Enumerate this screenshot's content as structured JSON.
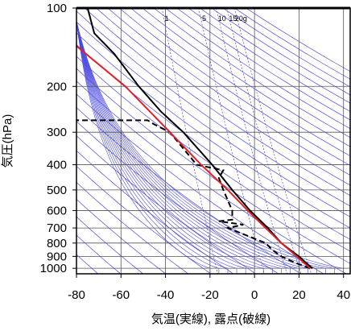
{
  "chart_data": {
    "type": "line",
    "x_label": "気温(実線), 露点(破線)",
    "y_label": "気圧(hPa)",
    "xlim": [
      -80,
      43
    ],
    "xticks": [
      -80,
      -60,
      -40,
      -20,
      0,
      20,
      40
    ],
    "ylim": [
      1050,
      100
    ],
    "yticks": [
      100,
      200,
      300,
      400,
      500,
      600,
      700,
      800,
      900,
      1000
    ],
    "y_scale": "log",
    "grid": true,
    "mixing_ratio": [
      1,
      5,
      10,
      15,
      {
        "value": 20,
        "label": "20g"
      }
    ],
    "series": [
      {
        "color": "#000000",
        "style": "solid",
        "y": [
          1000,
          950,
          900,
          850,
          800,
          700,
          600,
          500,
          400,
          300,
          250,
          200,
          150,
          125,
          100
        ],
        "x": [
          26,
          23,
          20,
          16,
          12,
          6,
          -2,
          -10,
          -19,
          -32,
          -42,
          -52,
          -63,
          -72,
          -75
        ]
      },
      {
        "color": "#000000",
        "style": "dashed",
        "y": [
          1000,
          950,
          900,
          850,
          800,
          700,
          680,
          660,
          650,
          600,
          500,
          450,
          420,
          400,
          300,
          280,
          270,
          270
        ],
        "x": [
          25,
          18,
          12,
          8,
          5,
          -12,
          -5,
          -16,
          -10,
          -10,
          -14,
          -16,
          -14,
          -26,
          -38,
          -45,
          -48,
          -80
        ]
      },
      {
        "color": "#e0202a",
        "style": "solid",
        "y": [
          1000,
          900,
          800,
          700,
          600,
          500,
          400,
          300,
          200,
          140
        ],
        "x": [
          25,
          19,
          12,
          5,
          -3,
          -12,
          -24,
          -38,
          -58,
          -80
        ]
      }
    ]
  }
}
